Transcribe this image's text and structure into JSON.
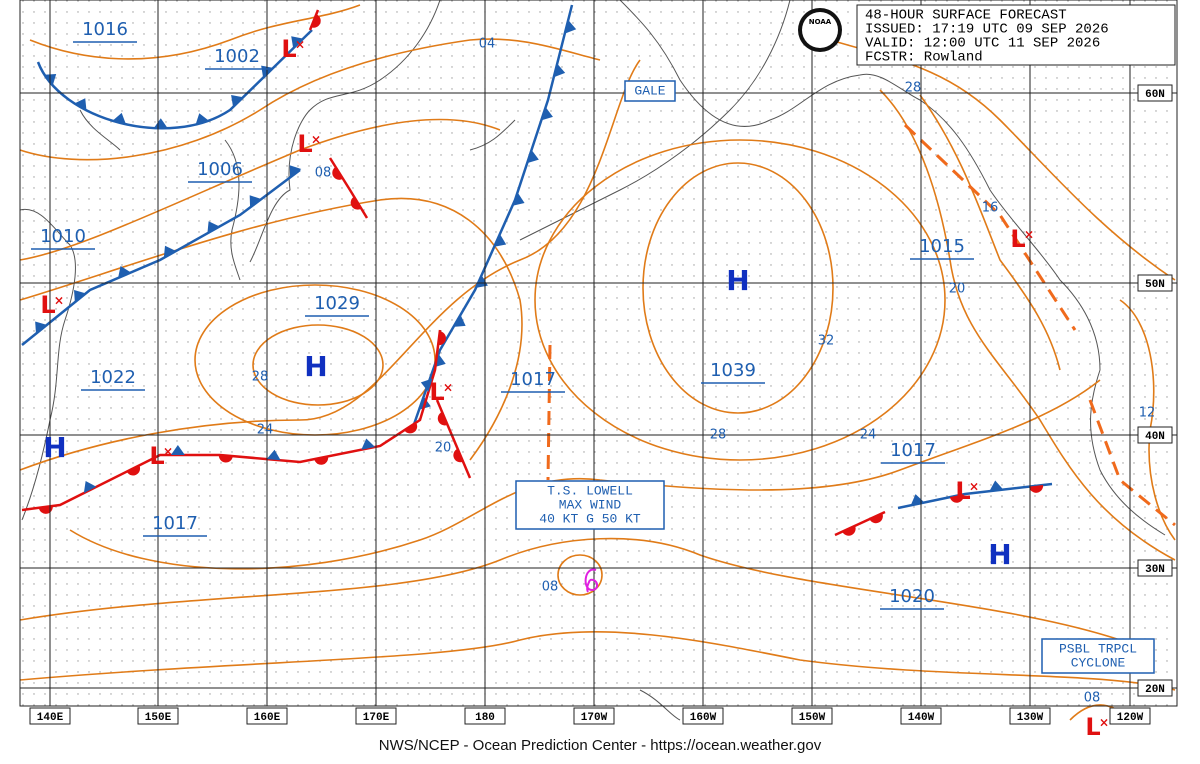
{
  "header": {
    "logo": "NOAA",
    "lines": [
      "48-HOUR SURFACE FORECAST",
      "ISSUED: 17:19 UTC 09 SEP 2026",
      "VALID: 12:00 UTC 11 SEP 2026",
      "FCSTR: Rowland"
    ]
  },
  "footer": "NWS/NCEP - Ocean Prediction Center - https://ocean.weather.gov",
  "lat_labels": [
    "60N",
    "50N",
    "40N",
    "30N",
    "20N"
  ],
  "lon_labels": [
    "140E",
    "150E",
    "160E",
    "170E",
    "180",
    "170W",
    "160W",
    "150W",
    "140W",
    "130W",
    "120W"
  ],
  "symbols": {
    "high": "H",
    "low": "L"
  },
  "pressure_centers": [
    "1016",
    "1002",
    "1006",
    "1010",
    "1029",
    "1022",
    "1017",
    "1039",
    "1015",
    "1017",
    "1017",
    "1020"
  ],
  "isobar_labels": [
    "04",
    "08",
    "28",
    "24",
    "20",
    "08",
    "28",
    "32",
    "24",
    "16",
    "20",
    "12",
    "28",
    "08"
  ],
  "gale": "GALE",
  "storm_box": [
    "T.S. LOWELL",
    "MAX WIND",
    "40 KT G 50 KT"
  ],
  "tropical_box": [
    "PSBL TRPCL",
    "CYCLONE"
  ]
}
